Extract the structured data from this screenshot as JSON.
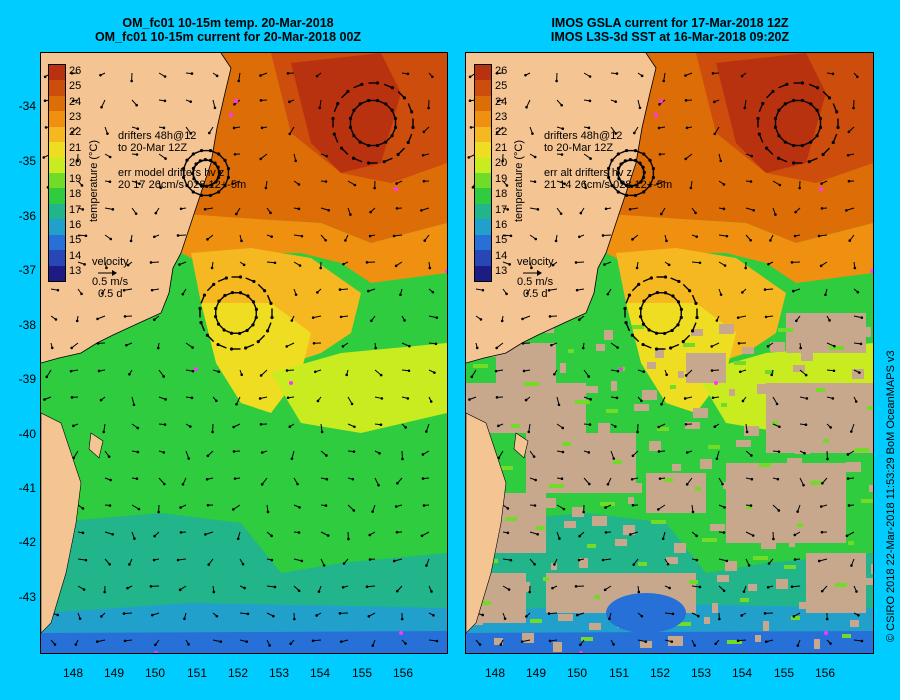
{
  "left": {
    "title_line1": "OM_fc01 10-15m temp. 20-Mar-2018",
    "title_line2": "OM_fc01 10-15m current for 20-Mar-2018 00Z",
    "drifters_line1": "drifters 48h@12",
    "drifters_line2": "to 20-Mar 12Z",
    "err_line1": "err model drifters hv z",
    "err_line2": "20 17 26cm/s 028 12+-5m",
    "velocity_label": "velocity",
    "velocity_value": "0.5 m/s",
    "velocity_days": "0.5 d"
  },
  "right": {
    "title_line1": "IMOS GSLA current for 17-Mar-2018 12Z",
    "title_line2": "IMOS L3S-3d SST at 16-Mar-2018 09:20Z",
    "drifters_line1": "drifters 48h@12",
    "drifters_line2": "to 20-Mar 12Z",
    "err_line1": "err alt drifters hv z",
    "err_line2": "21 14 26cm/s 028 12+-5m",
    "velocity_label": "velocity",
    "velocity_value": "0.5 m/s",
    "velocity_days": "0.5 d"
  },
  "colorbar": {
    "title": "temperature (°C)",
    "ticks": [
      "26",
      "25",
      "24",
      "23",
      "22",
      "21",
      "20",
      "19",
      "18",
      "17",
      "16",
      "15",
      "14",
      "13"
    ],
    "colors": [
      "#b83210",
      "#cc4d0c",
      "#dd6d06",
      "#f09010",
      "#f6b820",
      "#eedd20",
      "#c8ec20",
      "#70dc28",
      "#2ecc3e",
      "#22b48a",
      "#22a0cc",
      "#2670d8",
      "#2846b4",
      "#1c1c84"
    ]
  },
  "axes": {
    "lat_labels": [
      "-34",
      "-35",
      "-36",
      "-37",
      "-38",
      "-39",
      "-40",
      "-41",
      "-42",
      "-43"
    ],
    "lon_labels": [
      "148",
      "149",
      "150",
      "151",
      "152",
      "153",
      "154",
      "155",
      "156"
    ]
  },
  "credit": "© CSIRO 2018   22-Mar-2018 11:53:29 BoM OceanMAPS v3",
  "colors": {
    "background": "#00ccff",
    "land": "#f5c493",
    "no_data": "#c8a88c",
    "drifter": "#ff33ff"
  }
}
